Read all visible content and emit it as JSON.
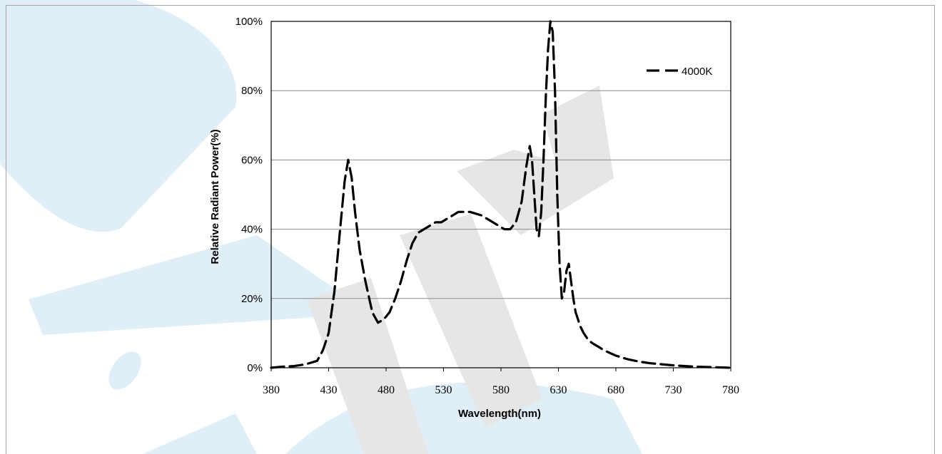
{
  "chart_data": {
    "type": "line",
    "xlabel": "Wavelength(nm)",
    "ylabel": "Relative Radiant Power(%)",
    "xlim": [
      380,
      780
    ],
    "ylim": [
      0,
      100
    ],
    "x_ticks": [
      "380",
      "430",
      "480",
      "530",
      "580",
      "630",
      "680",
      "730",
      "780"
    ],
    "y_ticks": [
      "0%",
      "20%",
      "40%",
      "60%",
      "80%",
      "100%"
    ],
    "grid": "horizontal",
    "legend_position": "top-right",
    "series": [
      {
        "name": "4000K",
        "style": "dashed",
        "color": "#000000",
        "x": [
          380,
          390,
          400,
          410,
          420,
          425,
          430,
          435,
          440,
          444,
          447,
          450,
          453,
          457,
          462,
          468,
          473,
          478,
          483,
          488,
          493,
          498,
          503,
          508,
          513,
          518,
          523,
          528,
          533,
          538,
          543,
          548,
          553,
          558,
          563,
          568,
          573,
          578,
          583,
          588,
          593,
          598,
          602,
          605,
          607,
          609,
          611,
          613,
          615,
          617,
          619,
          621,
          623,
          625,
          627,
          629,
          631,
          633,
          635,
          637,
          639,
          641,
          643,
          645,
          647,
          649,
          652,
          656,
          660,
          665,
          670,
          680,
          690,
          700,
          710,
          720,
          730,
          740,
          750,
          760,
          770,
          780
        ],
        "values": [
          0,
          0.3,
          0.5,
          1,
          2,
          5,
          10,
          22,
          40,
          54,
          60,
          55,
          45,
          34,
          25,
          16,
          13,
          14,
          16,
          20,
          25,
          31,
          36,
          39,
          40,
          41,
          42,
          42,
          43,
          44,
          45,
          45,
          45,
          44.5,
          44,
          43,
          42,
          41,
          40,
          40,
          42,
          48,
          58,
          64,
          60,
          50,
          40,
          38,
          45,
          60,
          78,
          92,
          100,
          97,
          80,
          50,
          30,
          20,
          22,
          28,
          30,
          25,
          20,
          16,
          14,
          12,
          10,
          8,
          7,
          6,
          5,
          3.5,
          2.5,
          1.8,
          1.3,
          1,
          0.7,
          0.5,
          0.3,
          0.2,
          0.1,
          0
        ]
      }
    ]
  }
}
